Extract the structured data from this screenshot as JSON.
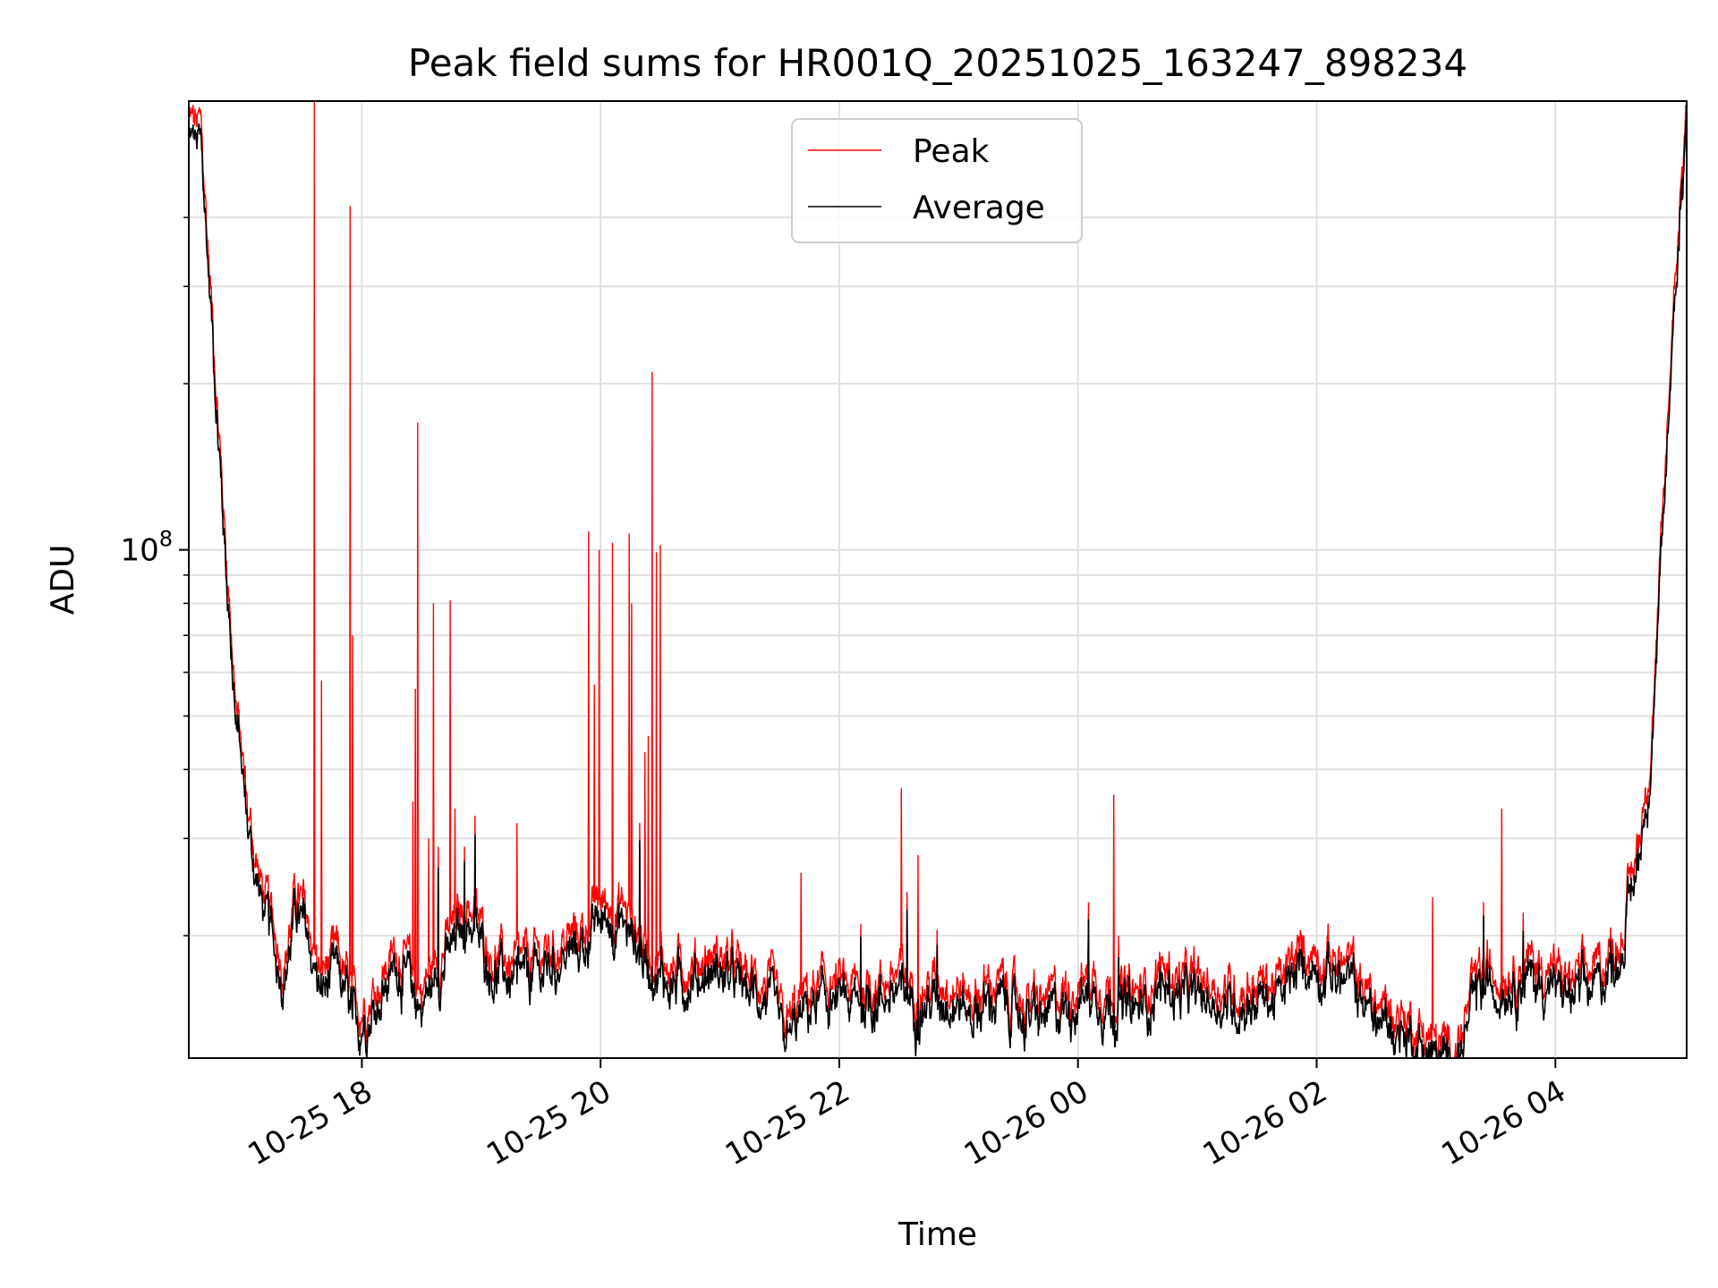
{
  "chart_data": {
    "type": "line",
    "title": "Peak field sums for HR001Q_20251025_163247_898234",
    "xlabel": "Time",
    "ylabel": "ADU",
    "yscale": "log",
    "ylim": [
      12000000,
      650000000
    ],
    "xlim": [
      16.55,
      29.1
    ],
    "grid": true,
    "legend_position": "upper-center",
    "y_major_tick": {
      "value": 100000000,
      "base": "10",
      "exponent": "8"
    },
    "y_minor_ticks": [
      20000000,
      30000000,
      40000000,
      50000000,
      60000000,
      70000000,
      80000000,
      90000000,
      200000000,
      300000000,
      400000000
    ],
    "x_ticks": [
      {
        "value": 18,
        "label": "10-25 18"
      },
      {
        "value": 20,
        "label": "10-25 20"
      },
      {
        "value": 22,
        "label": "10-25 22"
      },
      {
        "value": 24,
        "label": "10-26 00"
      },
      {
        "value": 26,
        "label": "10-26 02"
      },
      {
        "value": 28,
        "label": "10-26 04"
      }
    ],
    "colors": {
      "peak": "#ff0000",
      "average": "#000000",
      "grid": "#e0e0e0"
    },
    "series": [
      {
        "name": "Peak",
        "color": "#ff0000",
        "baseline": [
          [
            16.55,
            600000000
          ],
          [
            16.65,
            580000000
          ],
          [
            16.75,
            260000000
          ],
          [
            16.85,
            110000000
          ],
          [
            16.95,
            52000000
          ],
          [
            17.05,
            33000000
          ],
          [
            17.15,
            25000000
          ],
          [
            17.25,
            21000000
          ],
          [
            17.35,
            18000000
          ],
          [
            17.45,
            24000000
          ],
          [
            17.55,
            21000000
          ],
          [
            17.65,
            17000000
          ],
          [
            17.8,
            18500000
          ],
          [
            17.95,
            14500000
          ],
          [
            18.1,
            16000000
          ],
          [
            18.3,
            19000000
          ],
          [
            18.5,
            16000000
          ],
          [
            18.7,
            19500000
          ],
          [
            18.9,
            23000000
          ],
          [
            19.1,
            18500000
          ],
          [
            19.3,
            17500000
          ],
          [
            19.5,
            18500000
          ],
          [
            19.7,
            19500000
          ],
          [
            19.9,
            21000000
          ],
          [
            20.0,
            23000000
          ],
          [
            20.2,
            22500000
          ],
          [
            20.4,
            19000000
          ],
          [
            20.6,
            17500000
          ],
          [
            20.8,
            18000000
          ],
          [
            21.0,
            18500000
          ],
          [
            21.2,
            17000000
          ],
          [
            21.4,
            16500000
          ],
          [
            21.55,
            13500000
          ],
          [
            21.7,
            15500000
          ],
          [
            21.9,
            16500000
          ],
          [
            22.1,
            16000000
          ],
          [
            22.3,
            16500000
          ],
          [
            22.5,
            17000000
          ],
          [
            22.7,
            16000000
          ],
          [
            22.9,
            17000000
          ],
          [
            23.1,
            15500000
          ],
          [
            23.3,
            16500000
          ],
          [
            23.5,
            15500000
          ],
          [
            23.7,
            15000000
          ],
          [
            23.9,
            16000000
          ],
          [
            24.1,
            17000000
          ],
          [
            24.3,
            16000000
          ],
          [
            24.5,
            15500000
          ],
          [
            24.7,
            17500000
          ],
          [
            24.9,
            16500000
          ],
          [
            25.1,
            16500000
          ],
          [
            25.3,
            16000000
          ],
          [
            25.5,
            16500000
          ],
          [
            25.7,
            16500000
          ],
          [
            25.9,
            19000000
          ],
          [
            26.1,
            18500000
          ],
          [
            26.3,
            17500000
          ],
          [
            26.5,
            15000000
          ],
          [
            26.7,
            14500000
          ],
          [
            26.9,
            13500000
          ],
          [
            27.05,
            12500000
          ],
          [
            27.2,
            13000000
          ],
          [
            27.35,
            17000000
          ],
          [
            27.55,
            17500000
          ],
          [
            27.75,
            18000000
          ],
          [
            27.95,
            17500000
          ],
          [
            28.15,
            16500000
          ],
          [
            28.35,
            17500000
          ],
          [
            28.55,
            20000000
          ],
          [
            28.7,
            30000000
          ],
          [
            28.8,
            45000000
          ],
          [
            28.9,
            110000000
          ],
          [
            29.0,
            320000000
          ],
          [
            29.1,
            650000000
          ]
        ],
        "spikes": [
          [
            17.6,
            650000000
          ],
          [
            17.66,
            58000000
          ],
          [
            17.9,
            420000000
          ],
          [
            17.92,
            70000000
          ],
          [
            18.43,
            35000000
          ],
          [
            18.45,
            56000000
          ],
          [
            18.47,
            170000000
          ],
          [
            18.56,
            30000000
          ],
          [
            18.6,
            80000000
          ],
          [
            18.64,
            29000000
          ],
          [
            18.74,
            81000000
          ],
          [
            18.78,
            34000000
          ],
          [
            18.86,
            29000000
          ],
          [
            18.95,
            33000000
          ],
          [
            19.3,
            32000000
          ],
          [
            19.9,
            108000000
          ],
          [
            19.95,
            57000000
          ],
          [
            19.99,
            100000000
          ],
          [
            20.1,
            103000000
          ],
          [
            20.24,
            107000000
          ],
          [
            20.26,
            80000000
          ],
          [
            20.33,
            32000000
          ],
          [
            20.37,
            43000000
          ],
          [
            20.4,
            46000000
          ],
          [
            20.43,
            210000000
          ],
          [
            20.47,
            99000000
          ],
          [
            20.5,
            102000000
          ],
          [
            21.68,
            26000000
          ],
          [
            22.18,
            21000000
          ],
          [
            22.52,
            37000000
          ],
          [
            22.57,
            24000000
          ],
          [
            22.66,
            28000000
          ],
          [
            22.82,
            20500000
          ],
          [
            24.09,
            23000000
          ],
          [
            24.3,
            36000000
          ],
          [
            24.34,
            20000000
          ],
          [
            26.97,
            23500000
          ],
          [
            27.4,
            23000000
          ],
          [
            27.55,
            34000000
          ],
          [
            27.73,
            22000000
          ]
        ]
      },
      {
        "name": "Average",
        "color": "#000000",
        "ratio_to_peak_baseline": 0.93
      }
    ]
  }
}
